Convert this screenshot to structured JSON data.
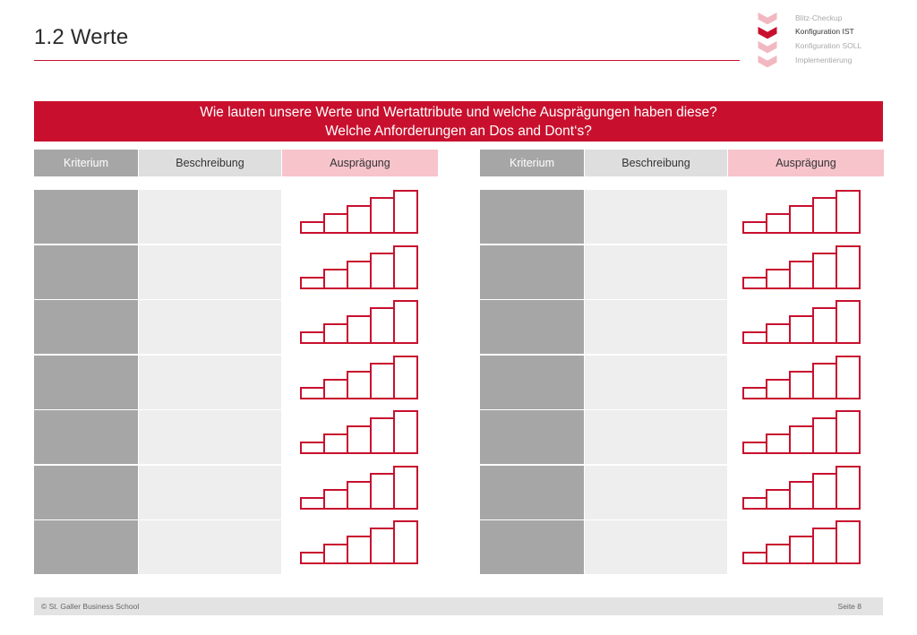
{
  "page_title": "1.2 Werte",
  "process_nav": {
    "steps": [
      {
        "label": "Blitz-Checkup",
        "active": false
      },
      {
        "label": "Konfiguration IST",
        "active": true
      },
      {
        "label": "Konfiguration SOLL",
        "active": false
      },
      {
        "label": "Implementierung",
        "active": false
      }
    ]
  },
  "banner": {
    "line1": "Wie lauten unsere Werte und Wertattribute und welche Ausprägungen haben diese?",
    "line2": "Welche Anforderungen an Dos and Dont‘s?"
  },
  "table_header": {
    "kriterium": "Kriterium",
    "beschreibung": "Beschreibung",
    "auspraegung": "Ausprägung"
  },
  "rows_per_table": 7,
  "scale_levels": 5,
  "colors": {
    "accent": "#c8102e",
    "criterion_cell": "#a6a6a6",
    "description_cell": "#eeeeee",
    "auspraegung_header": "#f7c4cc"
  },
  "footer": {
    "left": "© St. Galler Business School",
    "right": "Seite 8"
  }
}
